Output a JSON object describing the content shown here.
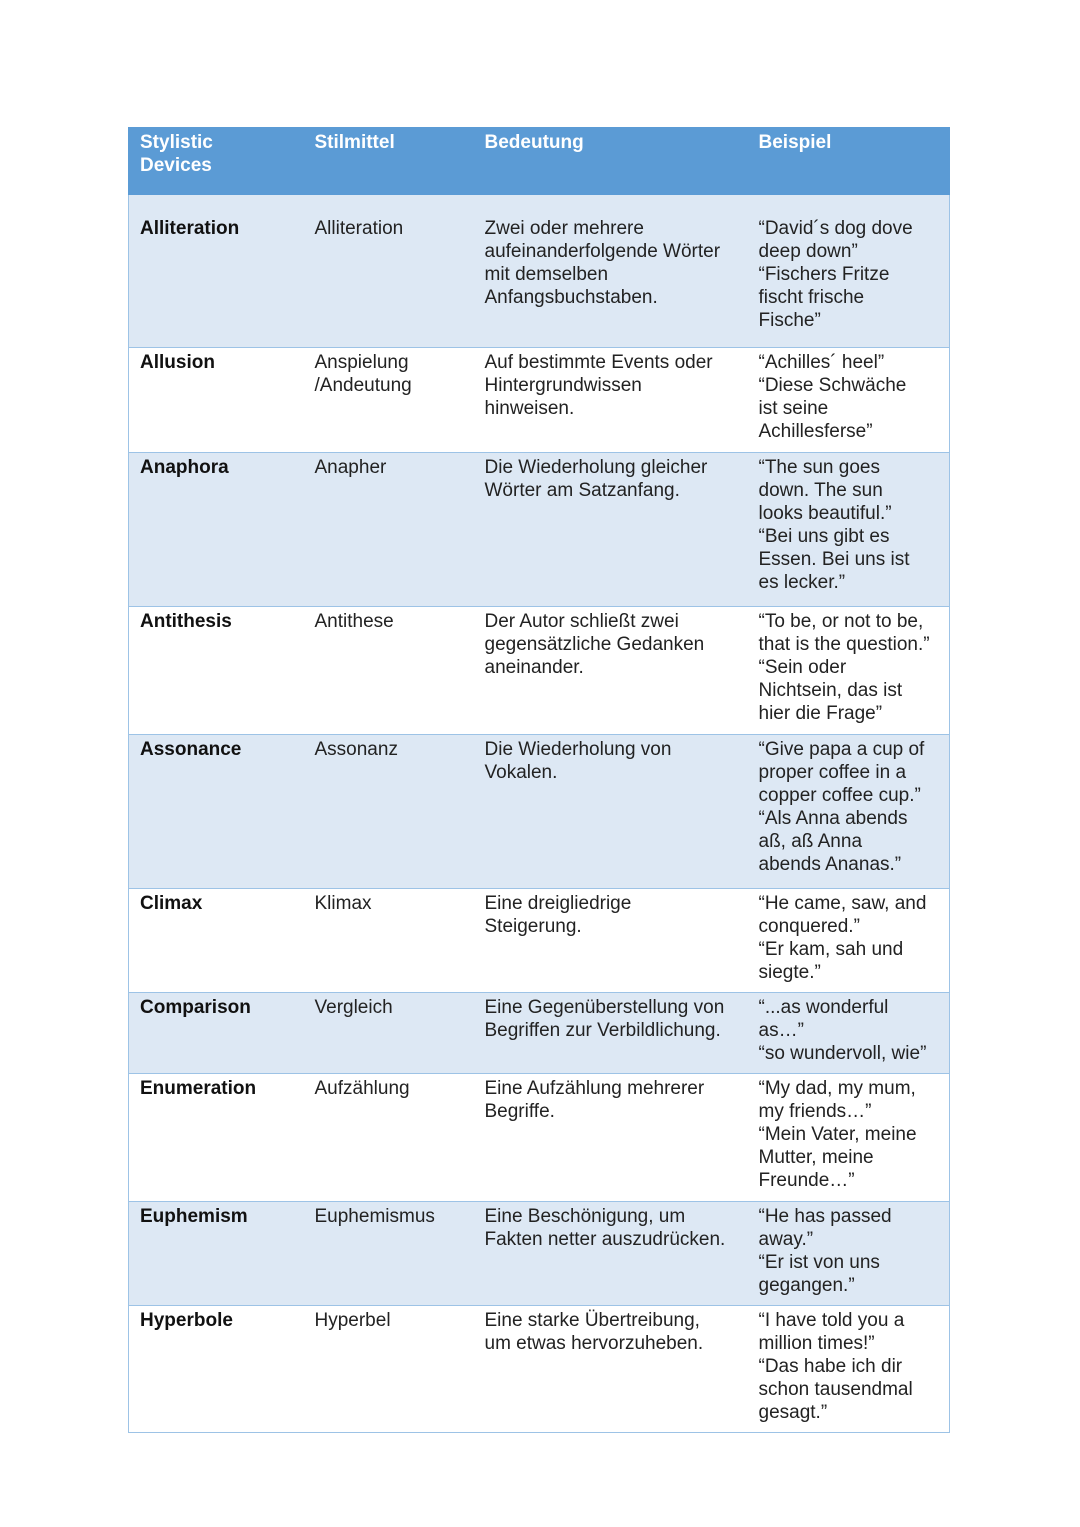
{
  "headers": [
    "Stylistic\nDevices",
    "Stilmittel",
    "Bedeutung",
    "Beispiel"
  ],
  "rows": [
    {
      "device": "Alliteration",
      "stilmittel": "Alliteration",
      "bedeutung": "Zwei oder mehrere\naufeinanderfolgende Wörter\nmit demselben\nAnfangsbuchstaben.",
      "beispiel": "“David´s dog dove\ndeep down”\n“Fischers Fritze\nfischt frische\nFische”"
    },
    {
      "device": "Allusion",
      "stilmittel": "Anspielung\n/Andeutung",
      "bedeutung": "Auf bestimmte Events oder\nHintergrundwissen\nhinweisen.",
      "beispiel": "“Achilles´ heel”\n“Diese Schwäche\nist seine\nAchillesferse”"
    },
    {
      "device": "Anaphora",
      "stilmittel": "Anapher",
      "bedeutung": "Die Wiederholung gleicher\nWörter am Satzanfang.",
      "beispiel": "“The sun goes\ndown. The sun\nlooks beautiful.”\n“Bei uns gibt es\nEssen. Bei uns ist\nes lecker.”"
    },
    {
      "device": "Antithesis",
      "stilmittel": "Antithese",
      "bedeutung": "Der Autor schließt zwei\ngegensätzliche Gedanken\naneinander.",
      "beispiel": "“To be, or not to be,\nthat is the question.”\n“Sein oder\nNichtsein, das ist\nhier die Frage”"
    },
    {
      "device": "Assonance",
      "stilmittel": "Assonanz",
      "bedeutung": "Die Wiederholung von\nVokalen.",
      "beispiel": "“Give papa a cup of\nproper coffee in a\ncopper coffee cup.”\n“Als Anna abends\naß, aß Anna\nabends Ananas.”"
    },
    {
      "device": "Climax",
      "stilmittel": "Klimax",
      "bedeutung": "Eine dreigliedrige\nSteigerung.",
      "beispiel": "“He came, saw, and\nconquered.”\n“Er kam, sah und\nsiegte.”"
    },
    {
      "device": "Comparison",
      "stilmittel": "Vergleich",
      "bedeutung": "Eine Gegenüberstellung von\nBegriffen zur Verbildlichung.",
      "beispiel": "“...as wonderful\nas…”\n“so wundervoll, wie”"
    },
    {
      "device": "Enumeration",
      "stilmittel": "Aufzählung",
      "bedeutung": "Eine Aufzählung mehrerer\nBegriffe.",
      "beispiel": "“My dad, my mum,\nmy friends…”\n“Mein Vater, meine\nMutter, meine\nFreunde…”"
    },
    {
      "device": "Euphemism",
      "stilmittel": "Euphemismus",
      "bedeutung": "Eine Beschönigung, um\nFakten netter auszudrücken.",
      "beispiel": "“He has passed\naway.”\n“Er ist von uns\ngegangen.”"
    },
    {
      "device": "Hyperbole",
      "stilmittel": "Hyperbel",
      "bedeutung": "Eine starke Übertreibung,\num etwas hervorzuheben.",
      "beispiel": "“I have told you a\nmillion times!”\n“Das habe ich dir\nschon tausendmal\ngesagt.”"
    }
  ]
}
